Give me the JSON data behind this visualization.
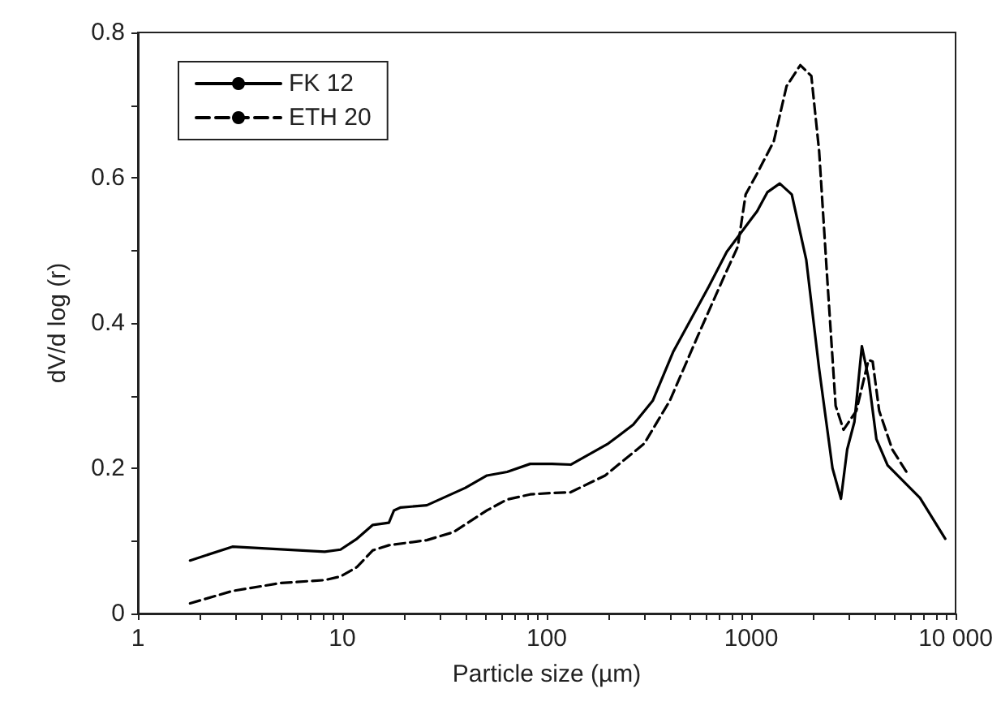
{
  "chart_data": {
    "type": "line",
    "xlabel": "Particle size (µm)",
    "ylabel": "dV/d log (r)",
    "log": "x",
    "xlim": [
      1,
      10000
    ],
    "ylim": [
      0,
      0.8
    ],
    "xticks": [
      1,
      {
        "value": 2,
        "label": null
      },
      {
        "value": 3,
        "label": null
      },
      {
        "value": 4,
        "label": null
      },
      {
        "value": 5,
        "label": null
      },
      {
        "value": 6,
        "label": null
      },
      {
        "value": 7,
        "label": null
      },
      {
        "value": 8,
        "label": null
      },
      {
        "value": 9,
        "label": null
      },
      10,
      {
        "value": 20,
        "label": null
      },
      {
        "value": 30,
        "label": null
      },
      {
        "value": 40,
        "label": null
      },
      {
        "value": 50,
        "label": null
      },
      {
        "value": 60,
        "label": null
      },
      {
        "value": 70,
        "label": null
      },
      {
        "value": 80,
        "label": null
      },
      {
        "value": 90,
        "label": null
      },
      100,
      {
        "value": 200,
        "label": null
      },
      {
        "value": 300,
        "label": null
      },
      {
        "value": 400,
        "label": null
      },
      {
        "value": 500,
        "label": null
      },
      {
        "value": 600,
        "label": null
      },
      {
        "value": 700,
        "label": null
      },
      {
        "value": 800,
        "label": null
      },
      {
        "value": 900,
        "label": null
      },
      1000,
      {
        "value": 2000,
        "label": null
      },
      {
        "value": 3000,
        "label": null
      },
      {
        "value": 4000,
        "label": null
      },
      {
        "value": 5000,
        "label": null
      },
      {
        "value": 6000,
        "label": null
      },
      {
        "value": 7000,
        "label": null
      },
      {
        "value": 8000,
        "label": null
      },
      {
        "value": 9000,
        "label": null
      },
      {
        "value": 10000,
        "label": "10 000"
      }
    ],
    "yticks": [
      0,
      {
        "value": 0.1,
        "label": null
      },
      0.2,
      {
        "value": 0.3,
        "label": null
      },
      0.4,
      {
        "value": 0.5,
        "label": null
      },
      0.6,
      {
        "value": 0.7,
        "label": null
      },
      0.8
    ],
    "grid": false,
    "legend": "top left",
    "marker": "none",
    "series": [
      {
        "name": "FK 12",
        "color": "#000000",
        "line_style": "solid",
        "x": [
          1.8,
          2.9,
          8.2,
          9.8,
          11.8,
          14.1,
          16.9,
          17.9,
          19.3,
          25.9,
          40,
          51,
          64,
          83,
          106,
          131,
          200,
          265,
          330,
          415,
          620,
          760,
          1000,
          1070,
          1200,
          1380,
          1580,
          1860,
          2150,
          2500,
          2750,
          2950,
          3200,
          3480,
          3750,
          4100,
          4650,
          6700,
          8900
        ],
        "values": [
          0.073,
          0.092,
          0.085,
          0.088,
          0.103,
          0.122,
          0.125,
          0.142,
          0.146,
          0.149,
          0.173,
          0.19,
          0.195,
          0.206,
          0.206,
          0.205,
          0.234,
          0.26,
          0.293,
          0.36,
          0.45,
          0.498,
          0.543,
          0.554,
          0.58,
          0.592,
          0.577,
          0.487,
          0.337,
          0.2,
          0.158,
          0.226,
          0.264,
          0.368,
          0.324,
          0.24,
          0.204,
          0.159,
          0.103
        ]
      },
      {
        "name": "ETH 20",
        "color": "#000000",
        "line_style": "dashed",
        "x": [
          1.8,
          2.9,
          5,
          8.2,
          9.8,
          11.8,
          14.1,
          16.9,
          25.9,
          35,
          51,
          64,
          83,
          106,
          131,
          193,
          300,
          400,
          550,
          740,
          860,
          940,
          1070,
          1290,
          1490,
          1740,
          1970,
          2150,
          2360,
          2590,
          2830,
          3270,
          3750,
          3930,
          4230,
          4900,
          5900
        ],
        "values": [
          0.014,
          0.031,
          0.042,
          0.046,
          0.051,
          0.064,
          0.087,
          0.094,
          0.101,
          0.112,
          0.142,
          0.157,
          0.164,
          0.166,
          0.167,
          0.19,
          0.234,
          0.293,
          0.383,
          0.465,
          0.505,
          0.577,
          0.606,
          0.65,
          0.726,
          0.755,
          0.74,
          0.637,
          0.458,
          0.286,
          0.253,
          0.279,
          0.349,
          0.347,
          0.279,
          0.226,
          0.19
        ]
      }
    ]
  }
}
